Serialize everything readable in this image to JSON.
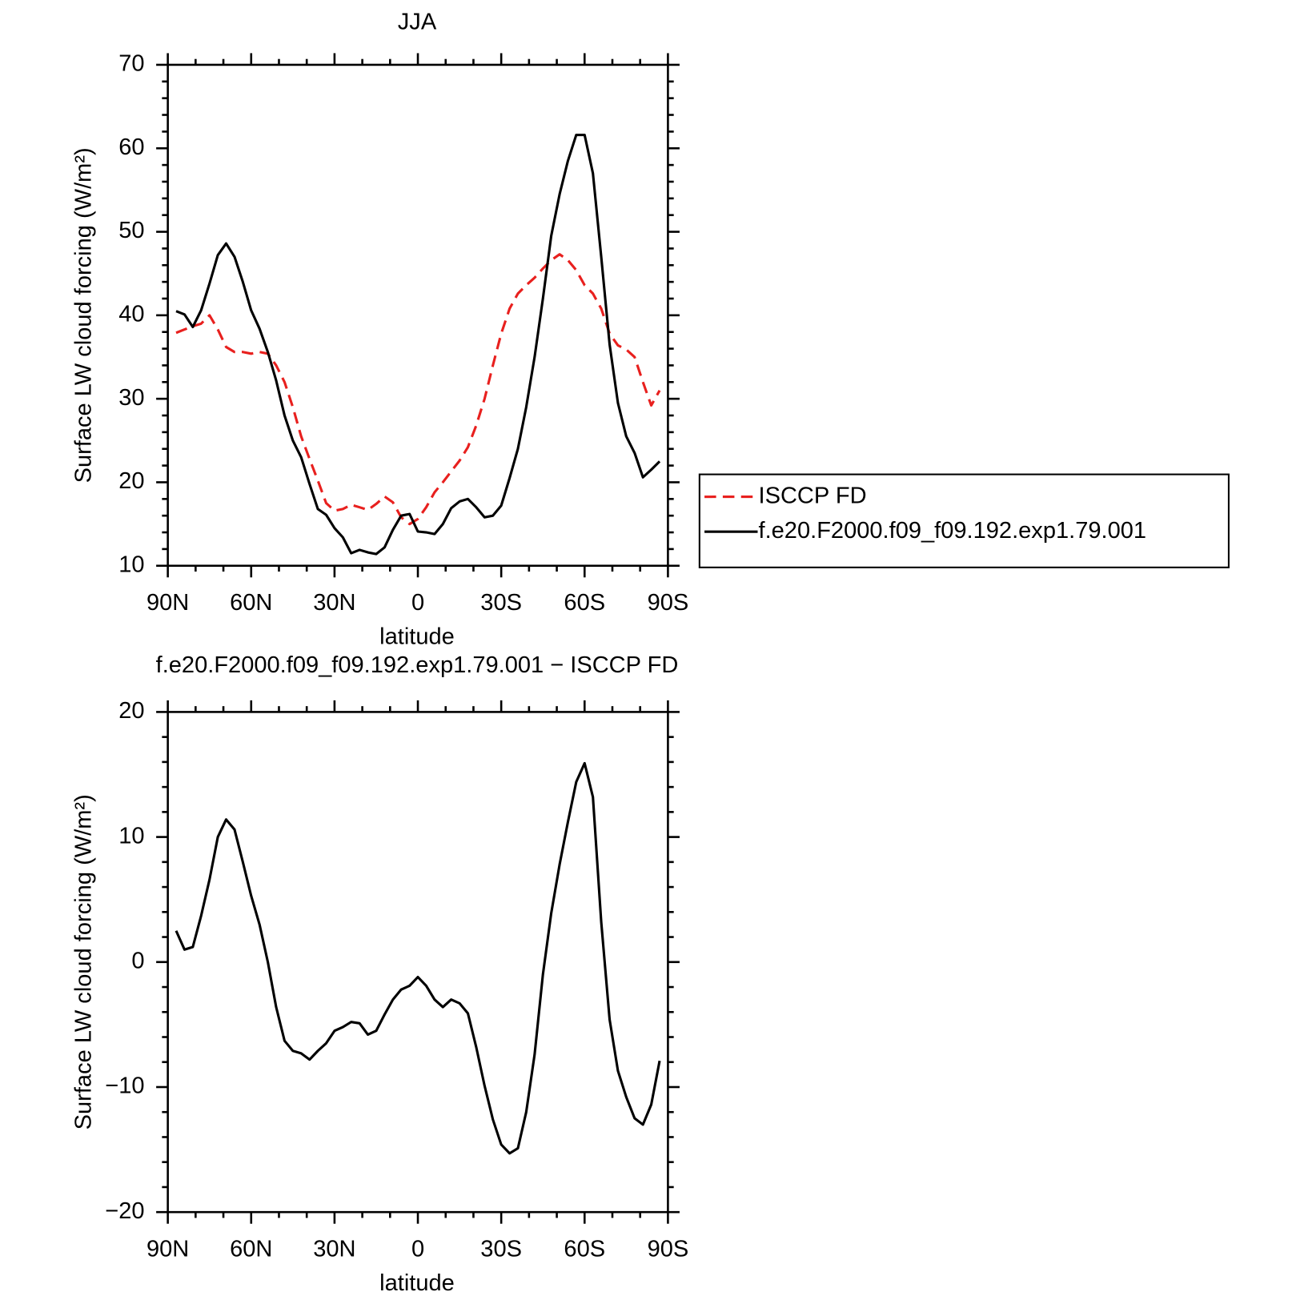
{
  "chart_data": [
    {
      "type": "line",
      "title": "JJA",
      "xlabel": "latitude",
      "ylabel": "Surface LW cloud forcing (W/m²)",
      "x": [
        87,
        84,
        81,
        78,
        75,
        72,
        69,
        66,
        63,
        60,
        57,
        54,
        51,
        48,
        45,
        42,
        39,
        36,
        33,
        30,
        27,
        24,
        21,
        18,
        15,
        12,
        9,
        6,
        3,
        0,
        -3,
        -6,
        -9,
        -12,
        -15,
        -18,
        -21,
        -24,
        -27,
        -30,
        -33,
        -36,
        -39,
        -42,
        -45,
        -48,
        -51,
        -54,
        -57,
        -60,
        -63,
        -66,
        -69,
        -72,
        -75,
        -78,
        -81,
        -84,
        -87
      ],
      "series": [
        {
          "name": "ISCCP FD",
          "color": "#e8201e",
          "dashed": true,
          "values": [
            37.9,
            38.3,
            38.7,
            39,
            40,
            38.3,
            36.2,
            35.6,
            35.6,
            35.4,
            35.6,
            35.4,
            34,
            32,
            29,
            25.5,
            22.8,
            20.2,
            17.5,
            16.6,
            16.8,
            17.3,
            17,
            16.7,
            17.4,
            18.3,
            17.6,
            15.8,
            15,
            15.6,
            17,
            18.8,
            20,
            21.3,
            22.6,
            24.2,
            26.8,
            30,
            34,
            37.8,
            40.8,
            42.6,
            43.6,
            44.5,
            45.6,
            46.6,
            47.3,
            46.6,
            45.4,
            43.6,
            42.6,
            40.8,
            37.8,
            36.4,
            35.9,
            35,
            32,
            29.2,
            31
          ]
        },
        {
          "name": "f.e20.F2000.f09_f09.192.exp1.79.001",
          "color": "#000000",
          "dashed": false,
          "values": [
            40.5,
            40.1,
            38.6,
            40.6,
            43.8,
            47.2,
            48.6,
            47,
            44,
            40.6,
            38.4,
            35.6,
            32.2,
            28,
            25,
            23,
            19.8,
            16.8,
            16.1,
            14.5,
            13.4,
            11.5,
            11.9,
            11.6,
            11.4,
            12.2,
            14.3,
            16,
            16.2,
            14.1,
            14,
            13.8,
            15,
            16.9,
            17.7,
            18,
            17,
            15.8,
            16,
            17.2,
            20.5,
            24,
            29,
            35,
            42,
            49.5,
            54.5,
            58.5,
            61.6,
            61.6,
            57,
            47,
            36.5,
            29.5,
            25.5,
            23.5,
            20.6,
            21.5,
            22.5
          ]
        }
      ],
      "xlim": [
        90,
        -90
      ],
      "xticks": [
        {
          "value": 90,
          "label": "90N"
        },
        {
          "value": 60,
          "label": "60N"
        },
        {
          "value": 30,
          "label": "30N"
        },
        0,
        {
          "value": -30,
          "label": "30S"
        },
        {
          "value": -60,
          "label": "60S"
        },
        {
          "value": -90,
          "label": "90S"
        }
      ],
      "xminorticks": [
        80,
        70,
        50,
        40,
        20,
        10,
        -10,
        -20,
        -40,
        -50,
        -70,
        -80
      ],
      "ylim": [
        10,
        70
      ],
      "yticks": [
        10,
        20,
        30,
        40,
        50,
        60,
        70
      ],
      "yminorticks": [
        12,
        14,
        16,
        18,
        22,
        24,
        26,
        28,
        32,
        34,
        36,
        38,
        42,
        44,
        46,
        48,
        52,
        54,
        56,
        58,
        62,
        64,
        66,
        68
      ],
      "legend": "right"
    },
    {
      "type": "line",
      "title": "f.e20.F2000.f09_f09.192.exp1.79.001 − ISCCP FD",
      "xlabel": "latitude",
      "ylabel": "Surface LW cloud forcing (W/m²)",
      "x": [
        87,
        84,
        81,
        78,
        75,
        72,
        69,
        66,
        63,
        60,
        57,
        54,
        51,
        48,
        45,
        42,
        39,
        36,
        33,
        30,
        27,
        24,
        21,
        18,
        15,
        12,
        9,
        6,
        3,
        0,
        -3,
        -6,
        -9,
        -12,
        -15,
        -18,
        -21,
        -24,
        -27,
        -30,
        -33,
        -36,
        -39,
        -42,
        -45,
        -48,
        -51,
        -54,
        -57,
        -60,
        -63,
        -66,
        -69,
        -72,
        -75,
        -78,
        -81,
        -84,
        -87
      ],
      "series": [
        {
          "color": "#000000",
          "dashed": false,
          "values": [
            2.5,
            1,
            1.2,
            3.7,
            6.6,
            10,
            11.4,
            10.6,
            8,
            5.3,
            3,
            0,
            -3.6,
            -6.3,
            -7.1,
            -7.3,
            -7.8,
            -7.1,
            -6.5,
            -5.5,
            -5.2,
            -4.8,
            -4.9,
            -5.8,
            -5.5,
            -4.2,
            -3,
            -2.2,
            -1.9,
            -1.2,
            -1.9,
            -3,
            -3.6,
            -3,
            -3.3,
            -4.1,
            -6.8,
            -9.9,
            -12.6,
            -14.6,
            -15.3,
            -14.9,
            -12,
            -7.4,
            -1,
            3.9,
            7.8,
            11.2,
            14.4,
            15.9,
            13.2,
            3.2,
            -4.6,
            -8.7,
            -10.8,
            -12.5,
            -13,
            -11.4,
            -7.9
          ]
        }
      ],
      "xlim": [
        90,
        -90
      ],
      "xticks": [
        {
          "value": 90,
          "label": "90N"
        },
        {
          "value": 60,
          "label": "60N"
        },
        {
          "value": 30,
          "label": "30N"
        },
        0,
        {
          "value": -30,
          "label": "30S"
        },
        {
          "value": -60,
          "label": "60S"
        },
        {
          "value": -90,
          "label": "90S"
        }
      ],
      "xminorticks": [
        80,
        70,
        50,
        40,
        20,
        10,
        -10,
        -20,
        -40,
        -50,
        -70,
        -80
      ],
      "ylim": [
        -20,
        20
      ],
      "yticks": [
        {
          "value": -20,
          "label": "−20"
        },
        {
          "value": -10,
          "label": "−10"
        },
        0,
        10,
        20
      ],
      "yminorticks": [
        -18,
        -16,
        -14,
        -12,
        -8,
        -6,
        -4,
        -2,
        2,
        4,
        6,
        8,
        12,
        14,
        16,
        18
      ]
    }
  ]
}
